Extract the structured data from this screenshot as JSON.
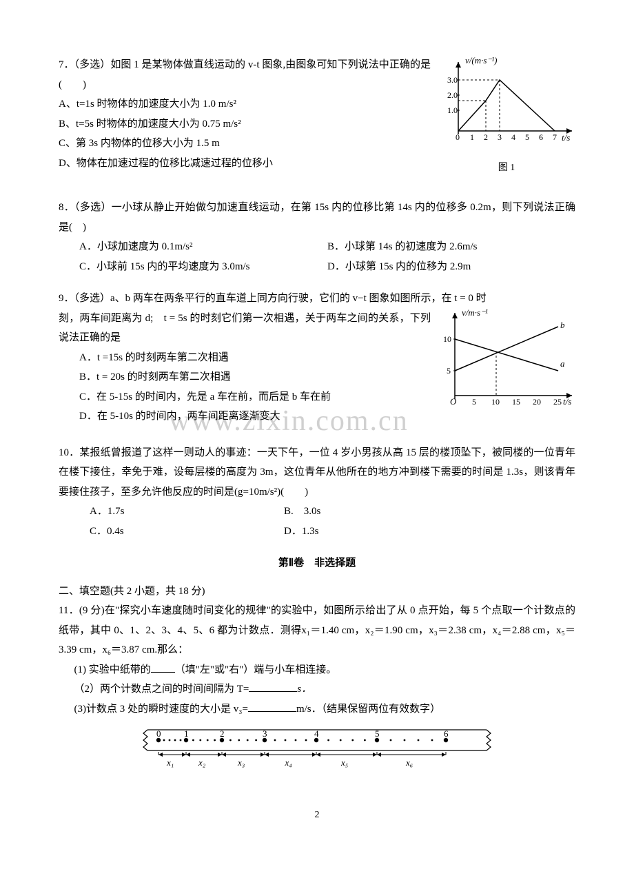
{
  "q7": {
    "stem": "7．（多选）如图 1 是某物体做直线运动的 v-t 图象,由图象可知下列说法中正确的是(　　)",
    "optA": "A、t=1s 时物体的加速度大小为 1.0 m/s²",
    "optB": "B、t=5s 时物体的加速度大小为 0.75 m/s²",
    "optC": "C、第 3s 内物体的位移大小为 1.5 m",
    "optD": "D、物体在加速过程的位移比减速过程的位移小",
    "figLabel": "图 1",
    "chart": {
      "type": "line",
      "y_label": "v/(m·s⁻¹)",
      "x_label": "t/s",
      "y_ticks": [
        0,
        1.0,
        2.0,
        3.0
      ],
      "x_ticks": [
        0,
        1,
        2,
        3,
        4,
        5,
        6,
        7
      ],
      "points": [
        [
          0,
          0
        ],
        [
          2,
          2
        ],
        [
          3,
          3
        ],
        [
          7,
          0
        ]
      ],
      "dashed_drop_x": [
        2,
        3
      ],
      "axis_color": "#000000",
      "line_color": "#000000",
      "dash_color": "#000000",
      "bg": "#ffffff"
    }
  },
  "q8": {
    "stem": "8．（多选）一小球从静止开始做匀加速直线运动，在第 15s 内的位移比第 14s 内的位移多 0.2m，则下列说法正确是(　)",
    "optA": "A．小球加速度为 0.1m/s²",
    "optB": "B．小球第 14s 的初速度为 2.6m/s",
    "optC": "C．小球前 15s 内的平均速度为 3.0m/s",
    "optD": "D．小球第 15s 内的位移为 2.9m"
  },
  "q9": {
    "stem1": "9．（多选）a、b 两车在两条平行的直车道上同方向行驶，它们的 v−t 图象如图所示，在 t = 0 时",
    "stem2": "刻，两车间距离为 d;　t = 5s 的时刻它们第一次相遇，关于两车之间的关系，下列说法正确的是",
    "optA": "A．t =15s 的时刻两车第二次相遇",
    "optB": "B．t = 20s 的时刻两车第二次相遇",
    "optC": "C．在 5-15s 的时间内，先是 a 车在前，而后是 b 车在前",
    "optD": "D．在 5-10s 的时间内，两车间距离逐渐变大",
    "chart": {
      "type": "line",
      "y_label": "v/m·s⁻¹",
      "x_label": "t/s",
      "y_ticks": [
        5,
        10
      ],
      "x_ticks": [
        5,
        10,
        15,
        20,
        25
      ],
      "series": [
        {
          "name": "a",
          "points": [
            [
              0,
              10
            ],
            [
              25,
              5
            ]
          ],
          "label_pos": [
            22,
            7
          ],
          "color": "#000000"
        },
        {
          "name": "b",
          "points": [
            [
              0,
              5
            ],
            [
              25,
              12
            ]
          ],
          "label_pos": [
            22,
            11
          ],
          "color": "#000000"
        }
      ],
      "intersection": [
        10,
        8
      ],
      "dashed_drop": true,
      "axis_color": "#000000",
      "bg": "#ffffff"
    }
  },
  "q10": {
    "stem": "10．某报纸曾报道了这样一则动人的事迹：一天下午，一位 4 岁小男孩从高 15 层的楼顶坠下，被同楼的一位青年在楼下接住，幸免于难，设每层楼的高度为 3m，这位青年从他所在的地方冲到楼下需要的时间是 1.3s，则该青年要接住孩子，至多允许他反应的时间是(g=10m/s²)(　　)",
    "optA": "A．1.7s",
    "optB": "B.　3.0s",
    "optC": "C．0.4s",
    "optD": "D．1.3s"
  },
  "section2": {
    "title": "第Ⅱ卷　非选择题",
    "subtitle": "二、填空题(共 2 小题，共 18 分)"
  },
  "q11": {
    "stem": "11．(9 分)在\"探究小车速度随时间变化的规律\"的实验中，如图所示给出了从 0 点开始，每 5 个点取一个计数点的纸带，其中 0、1、2、3、4、5、6 都为计数点．测得x₁＝1.40 cm，x₂＝1.90 cm，x₃＝2.38 cm，x₄＝2.88 cm，x₅＝3.39 cm，x₆＝3.87 cm.那么：",
    "sub1_a": "(1) 实验中纸带的",
    "sub1_b": "（填\"左\"或\"右\"）端与小车相连接。",
    "sub2_a": "（2）两个计数点之间的时间间隔为 T=",
    "sub2_b": "s．",
    "sub3_a": "(3)计数点 3 处的瞬时速度的大小是 v₃=",
    "sub3_b": "m/s．（结果保留两位有效数字）",
    "tape": {
      "labels": [
        "0",
        "1",
        "2",
        "3",
        "4",
        "5",
        "6"
      ],
      "segments": [
        "x₁",
        "x₂",
        "x₃",
        "x₄",
        "x₅",
        "x₆"
      ],
      "seg_widths": [
        40,
        52,
        62,
        75,
        88,
        100
      ],
      "dot_count_between": 4,
      "border_color": "#000000",
      "bg": "#ffffff"
    }
  },
  "watermark": "www.zixin.com.cn",
  "pageNumber": "2"
}
